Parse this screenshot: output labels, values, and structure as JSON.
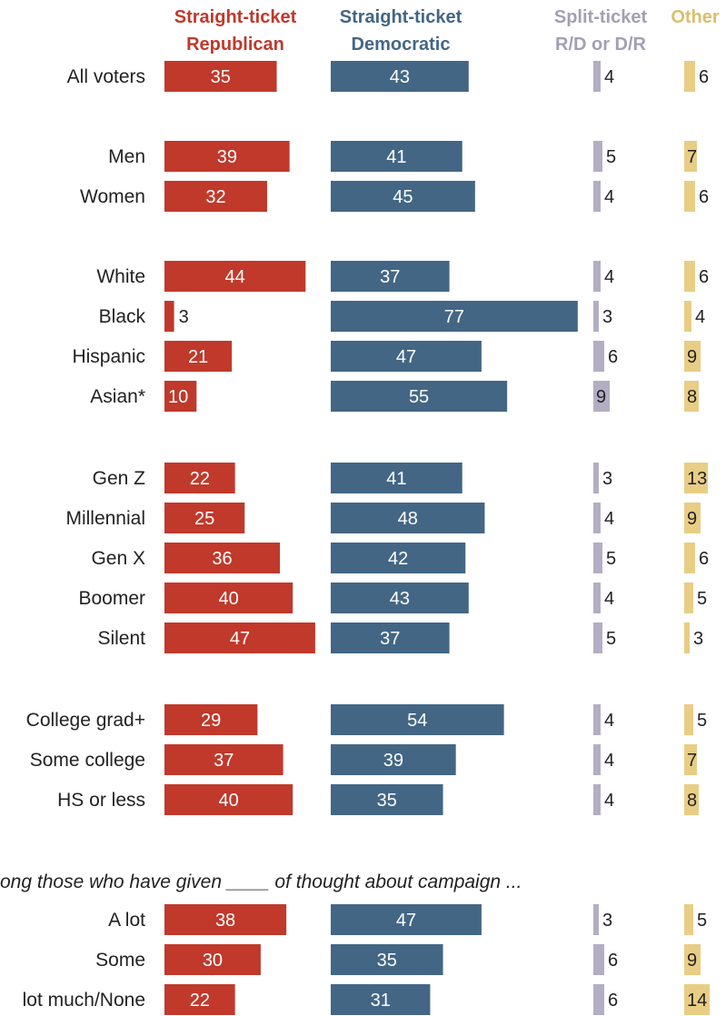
{
  "chart_data": {
    "type": "bar",
    "layout": "horizontal-grouped-columns",
    "series": [
      {
        "name_lines": [
          "Straight-ticket",
          "Republican"
        ],
        "color": "#c0392b",
        "label_color": "#c0392b",
        "values": [
          35,
          39,
          32,
          44,
          3,
          21,
          10,
          22,
          25,
          36,
          40,
          47,
          29,
          37,
          40,
          38,
          30,
          22
        ]
      },
      {
        "name_lines": [
          "Straight-ticket",
          "Democratic"
        ],
        "color": "#436685",
        "label_color": "#436685",
        "values": [
          43,
          41,
          45,
          37,
          77,
          47,
          55,
          41,
          48,
          42,
          43,
          37,
          54,
          39,
          35,
          47,
          35,
          31
        ]
      },
      {
        "name_lines": [
          "Split-ticket",
          "R/D or D/R"
        ],
        "color": "#b3aec3",
        "label_color": "#a39fb5",
        "values": [
          4,
          5,
          4,
          4,
          3,
          6,
          9,
          3,
          4,
          5,
          4,
          5,
          4,
          4,
          4,
          3,
          6,
          6
        ]
      },
      {
        "name_lines": [
          "Other",
          ""
        ],
        "color": "#e8cd85",
        "label_color": "#dcbf6b",
        "values": [
          6,
          7,
          6,
          6,
          4,
          9,
          8,
          13,
          9,
          6,
          5,
          3,
          5,
          7,
          8,
          5,
          9,
          14
        ]
      }
    ],
    "groups": [
      {
        "categories": [
          "All voters"
        ]
      },
      {
        "categories": [
          "Men",
          "Women"
        ]
      },
      {
        "categories": [
          "White",
          "Black",
          "Hispanic",
          "Asian*"
        ]
      },
      {
        "categories": [
          "Gen Z",
          "Millennial",
          "Gen X",
          "Boomer",
          "Silent"
        ]
      },
      {
        "categories": [
          "College grad+",
          "Some college",
          "HS or less"
        ]
      },
      {
        "note": "ong those who have given ____ of thought about campaign ...",
        "categories": [
          "A lot",
          "Some",
          "lot much/None"
        ]
      }
    ]
  }
}
